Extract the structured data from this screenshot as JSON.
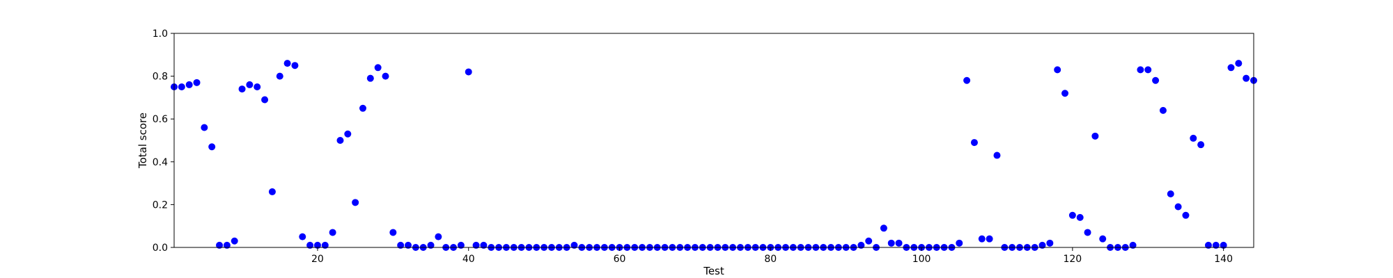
{
  "chart_data": {
    "type": "scatter",
    "title": "",
    "xlabel": "Test",
    "ylabel": "Total score",
    "xlim": [
      1,
      144
    ],
    "ylim": [
      0,
      1.0
    ],
    "x_ticks": [
      20,
      40,
      60,
      80,
      100,
      120,
      140
    ],
    "x_tick_labels": [
      "20",
      "40",
      "60",
      "80",
      "100",
      "120",
      "140"
    ],
    "y_ticks": [
      0,
      0.2,
      0.4,
      0.6,
      0.8,
      1.0
    ],
    "y_tick_labels": [
      "0.0",
      "0.2",
      "0.4",
      "0.6",
      "0.8",
      "1.0"
    ],
    "grid": false,
    "marker_color": "#0000ff",
    "x": [
      1,
      2,
      3,
      4,
      5,
      6,
      7,
      8,
      9,
      10,
      11,
      12,
      13,
      14,
      15,
      16,
      17,
      18,
      19,
      20,
      21,
      22,
      23,
      24,
      25,
      26,
      27,
      28,
      29,
      30,
      31,
      32,
      33,
      34,
      35,
      36,
      37,
      38,
      39,
      40,
      41,
      42,
      43,
      44,
      45,
      46,
      47,
      48,
      49,
      50,
      51,
      52,
      53,
      54,
      55,
      56,
      57,
      58,
      59,
      60,
      61,
      62,
      63,
      64,
      65,
      66,
      67,
      68,
      69,
      70,
      71,
      72,
      73,
      74,
      75,
      76,
      77,
      78,
      79,
      80,
      81,
      82,
      83,
      84,
      85,
      86,
      87,
      88,
      89,
      90,
      91,
      92,
      93,
      94,
      95,
      96,
      97,
      98,
      99,
      100,
      101,
      102,
      103,
      104,
      105,
      106,
      107,
      108,
      109,
      110,
      111,
      112,
      113,
      114,
      115,
      116,
      117,
      118,
      119,
      120,
      121,
      122,
      123,
      124,
      125,
      126,
      127,
      128,
      129,
      130,
      131,
      132,
      133,
      134,
      135,
      136,
      137,
      138,
      139,
      140,
      141,
      142,
      143,
      144
    ],
    "y": [
      0.75,
      0.75,
      0.76,
      0.77,
      0.56,
      0.47,
      0.01,
      0.01,
      0.03,
      0.74,
      0.76,
      0.75,
      0.69,
      0.26,
      0.8,
      0.86,
      0.85,
      0.05,
      0.01,
      0.01,
      0.01,
      0.07,
      0.5,
      0.53,
      0.21,
      0.65,
      0.79,
      0.84,
      0.8,
      0.07,
      0.01,
      0.01,
      0.0,
      0.0,
      0.01,
      0.05,
      0.0,
      0.0,
      0.01,
      0.82,
      0.01,
      0.01,
      0.0,
      0.0,
      0.0,
      0.0,
      0.0,
      0.0,
      0.0,
      0.0,
      0.0,
      0.0,
      0.0,
      0.01,
      0.0,
      0.0,
      0.0,
      0.0,
      0.0,
      0.0,
      0.0,
      0.0,
      0.0,
      0.0,
      0.0,
      0.0,
      0.0,
      0.0,
      0.0,
      0.0,
      0.0,
      0.0,
      0.0,
      0.0,
      0.0,
      0.0,
      0.0,
      0.0,
      0.0,
      0.0,
      0.0,
      0.0,
      0.0,
      0.0,
      0.0,
      0.0,
      0.0,
      0.0,
      0.0,
      0.0,
      0.0,
      0.01,
      0.03,
      0.0,
      0.09,
      0.02,
      0.02,
      0.0,
      0.0,
      0.0,
      0.0,
      0.0,
      0.0,
      0.0,
      0.02,
      0.78,
      0.49,
      0.04,
      0.04,
      0.43,
      0.0,
      0.0,
      0.0,
      0.0,
      0.0,
      0.01,
      0.02,
      0.83,
      0.72,
      0.15,
      0.14,
      0.07,
      0.52,
      0.04,
      0.0,
      0.0,
      0.0,
      0.01,
      0.83,
      0.83,
      0.78,
      0.64,
      0.25,
      0.19,
      0.15,
      0.51,
      0.48,
      0.01,
      0.01,
      0.01,
      0.84,
      0.86,
      0.79,
      0.78
    ]
  }
}
